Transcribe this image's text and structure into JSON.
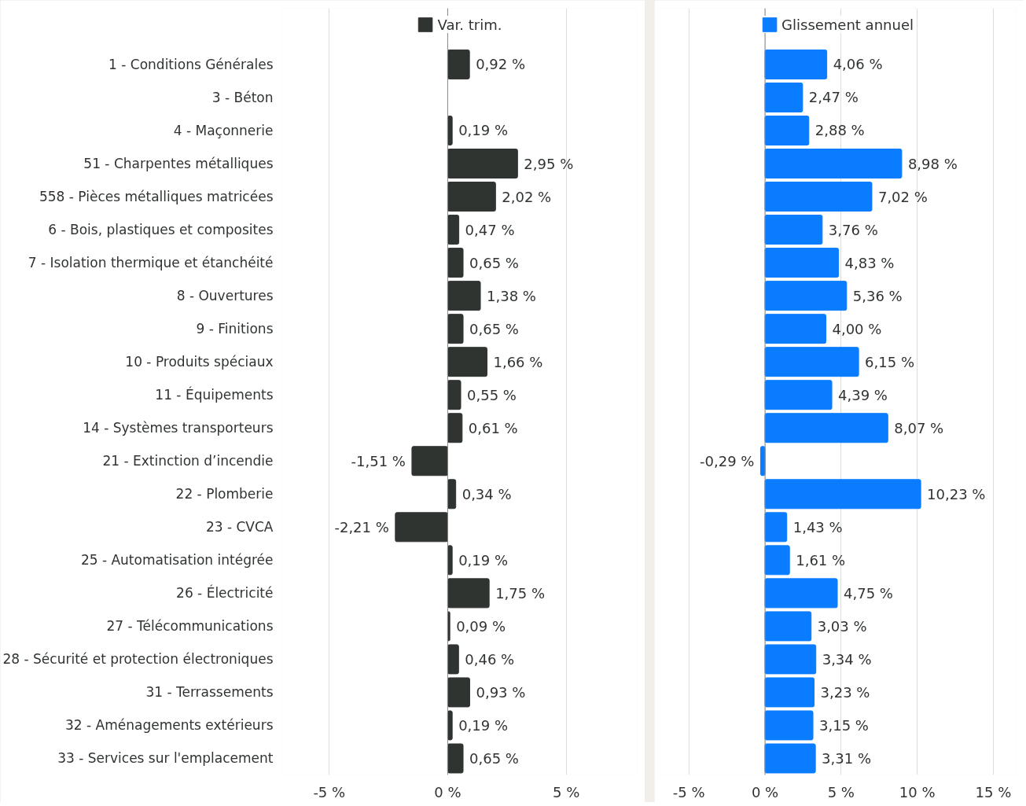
{
  "chart_data": [
    {
      "type": "bar",
      "orientation": "horizontal",
      "categories": [
        "1 - Conditions Générales",
        "3 - Béton",
        "4 - Maçonnerie",
        "51 - Charpentes métalliques",
        "558 - Pièces métalliques matricées",
        "6 - Bois, plastiques et composites",
        "7 - Isolation thermique et étanchéité",
        "8 - Ouvertures",
        "9 - Finitions",
        "10 - Produits spéciaux",
        "11 - Équipements",
        "14 - Systèmes transporteurs",
        "21 - Extinction d’incendie",
        "22 - Plomberie",
        "23 - CVCA",
        "25 - Automatisation intégrée",
        "26 - Électricité",
        "27 - Télécommunications",
        "28 - Sécurité et protection électroniques",
        "31 - Terrassements",
        "32 - Aménagements extérieurs",
        "33 - Services sur l'emplacement"
      ],
      "series": [
        {
          "name": "Var. trim.",
          "color": "#2f3431",
          "values": [
            0.92,
            null,
            0.19,
            2.95,
            2.02,
            0.47,
            0.65,
            1.38,
            0.65,
            1.66,
            0.55,
            0.61,
            -1.51,
            0.34,
            -2.21,
            0.19,
            1.75,
            0.09,
            0.46,
            0.93,
            0.19,
            0.65
          ],
          "value_labels": [
            "0,92 %",
            null,
            "0,19 %",
            "2,95 %",
            "2,02 %",
            "0,47 %",
            "0,65 %",
            "1,38 %",
            "0,65 %",
            "1,66 %",
            "0,55 %",
            "0,61 %",
            "-1,51 %",
            "0,34 %",
            "-2,21 %",
            "0,19 %",
            "1,75 %",
            "0,09 %",
            "0,46 %",
            "0,93 %",
            "0,19 %",
            "0,65 %"
          ]
        }
      ],
      "xlim": [
        -7,
        8
      ],
      "xticks": [
        {
          "value": -5,
          "label": "-5 %"
        },
        {
          "value": 0,
          "label": "0 %"
        },
        {
          "value": 5,
          "label": "5 %"
        }
      ],
      "grid": "x",
      "legend": "top"
    },
    {
      "type": "bar",
      "orientation": "horizontal",
      "tick_labels": "x",
      "categories": [
        null,
        null,
        null,
        null,
        null,
        null,
        null,
        null,
        null,
        null,
        null,
        null,
        null,
        null,
        null,
        null,
        null,
        null,
        null,
        null,
        null,
        null
      ],
      "series": [
        {
          "name": "Glissement annuel",
          "color": "#0a7cff",
          "values": [
            4.06,
            2.47,
            2.88,
            8.98,
            7.02,
            3.76,
            4.83,
            5.36,
            4.0,
            6.15,
            4.39,
            8.07,
            -0.29,
            10.23,
            1.43,
            1.61,
            4.75,
            3.03,
            3.34,
            3.23,
            3.15,
            3.31
          ],
          "value_labels": [
            "4,06 %",
            "2,47 %",
            "2,88 %",
            "8,98 %",
            "7,02 %",
            "3,76 %",
            "4,83 %",
            "5,36 %",
            "4,00 %",
            "6,15 %",
            "4,39 %",
            "8,07 %",
            "-0,29 %",
            "10,23 %",
            "1,43 %",
            "1,61 %",
            "4,75 %",
            "3,03 %",
            "3,34 %",
            "3,23 %",
            "3,15 %",
            "3,31 %"
          ]
        }
      ],
      "xlim": [
        -7,
        16.5
      ],
      "xticks": [
        {
          "value": -5,
          "label": "-5 %"
        },
        {
          "value": 0,
          "label": "0 %"
        },
        {
          "value": 5,
          "label": "5 %"
        },
        {
          "value": 10,
          "label": "10 %"
        },
        {
          "value": 15,
          "label": "15 %"
        }
      ],
      "grid": "x",
      "legend": "top"
    }
  ]
}
